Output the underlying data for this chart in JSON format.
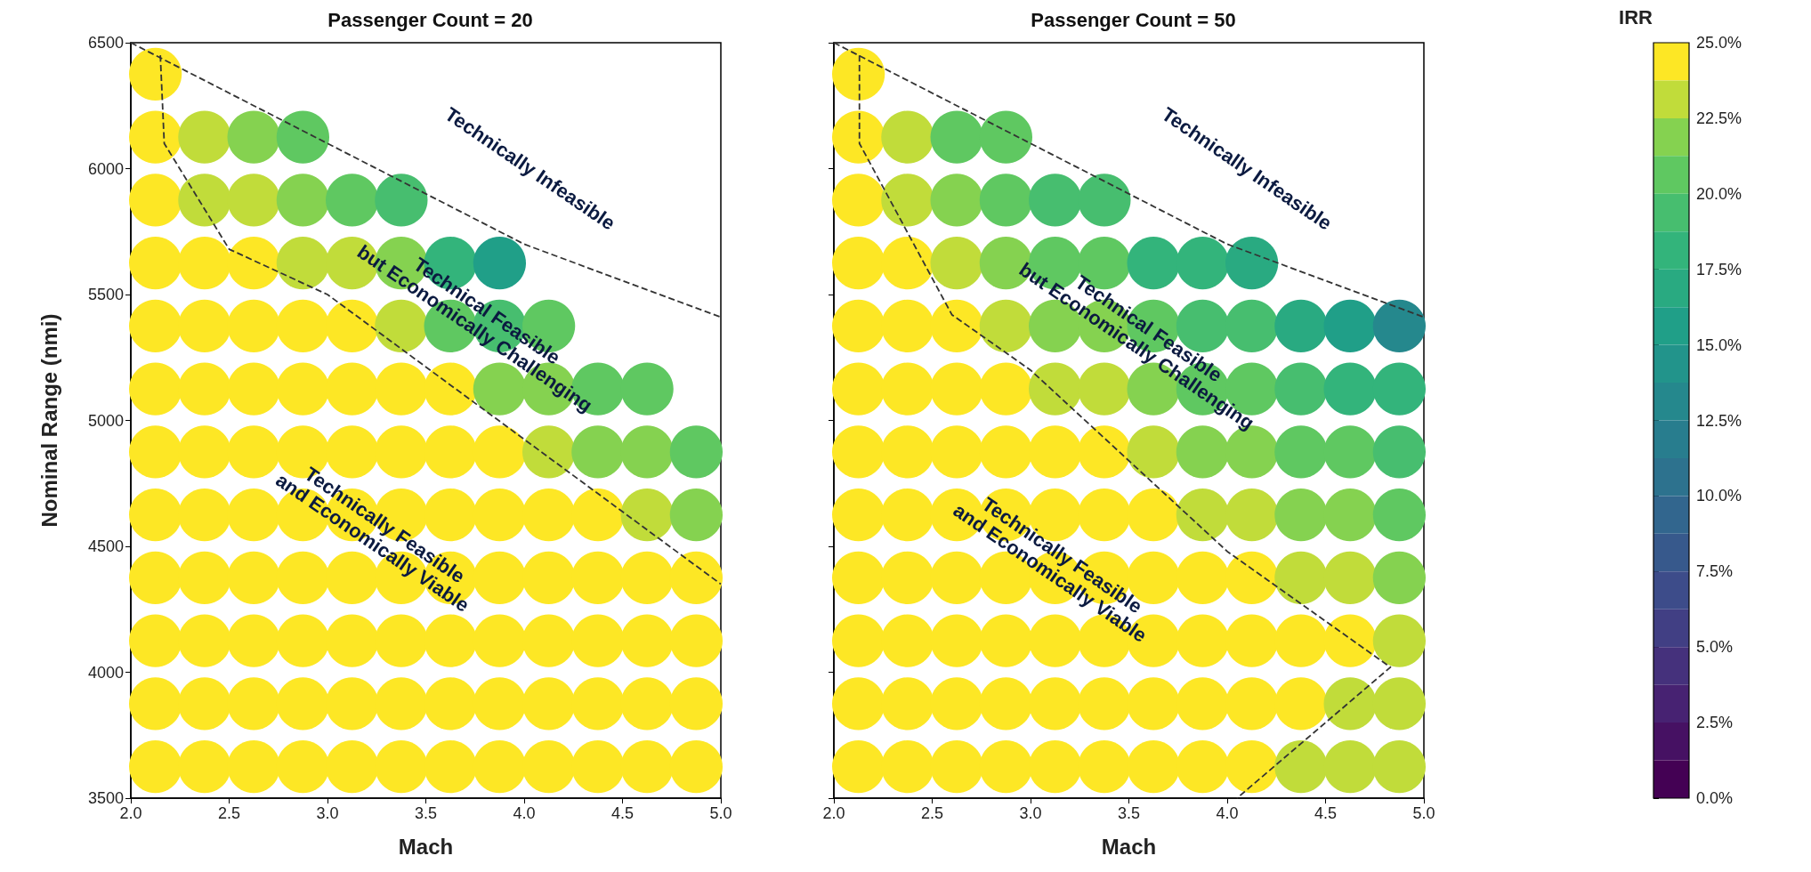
{
  "chart_data": [
    {
      "type": "scatter",
      "title": "Passenger Count = 20",
      "xlabel": "Mach",
      "ylabel": "Nominal Range (nmi)",
      "xlim": [
        2.0,
        5.0
      ],
      "xticks": [
        {
          "value": 2,
          "label": "2.0"
        },
        {
          "value": 2.5,
          "label": "2.5"
        },
        {
          "value": 3,
          "label": "3.0"
        },
        {
          "value": 3.5,
          "label": "3.5"
        },
        {
          "value": 4,
          "label": "4.0"
        },
        {
          "value": 4.5,
          "label": "4.5"
        },
        {
          "value": 5,
          "label": "5.0"
        }
      ],
      "ylim": [
        3500,
        6500
      ],
      "yticks": [
        3500,
        4000,
        4500,
        5000,
        5500,
        6000,
        6500
      ],
      "series": [
        {
          "type": "scatter",
          "marker": "circle",
          "x": [
            2.125,
            2.125,
            2.375,
            2.625,
            2.875,
            2.125,
            2.375,
            2.625,
            2.875,
            3.125,
            3.375,
            2.125,
            2.375,
            2.625,
            2.875,
            3.125,
            3.375,
            3.625,
            3.875,
            2.125,
            2.375,
            2.625,
            2.875,
            3.125,
            3.375,
            3.625,
            3.875,
            4.125,
            2.125,
            2.375,
            2.625,
            2.875,
            3.125,
            3.375,
            3.625,
            3.875,
            4.125,
            4.375,
            4.625,
            2.125,
            2.375,
            2.625,
            2.875,
            3.125,
            3.375,
            3.625,
            3.875,
            4.125,
            4.375,
            4.625,
            4.875,
            2.125,
            2.375,
            2.625,
            2.875,
            3.125,
            3.375,
            3.625,
            3.875,
            4.125,
            4.375,
            4.625,
            4.875,
            2.125,
            2.375,
            2.625,
            2.875,
            3.125,
            3.375,
            3.625,
            3.875,
            4.125,
            4.375,
            4.625,
            4.875,
            2.125,
            2.375,
            2.625,
            2.875,
            3.125,
            3.375,
            3.625,
            3.875,
            4.125,
            4.375,
            4.625,
            4.875,
            2.125,
            2.375,
            2.625,
            2.875,
            3.125,
            3.375,
            3.625,
            3.875,
            4.125,
            4.375,
            4.625,
            4.875,
            2.125,
            2.375,
            2.625,
            2.875,
            3.125,
            3.375,
            3.625,
            3.875,
            4.125,
            4.375,
            4.625,
            4.875
          ],
          "values": [
            6375,
            6125,
            6125,
            6125,
            6125,
            5875,
            5875,
            5875,
            5875,
            5875,
            5875,
            5625,
            5625,
            5625,
            5625,
            5625,
            5625,
            5625,
            5625,
            5375,
            5375,
            5375,
            5375,
            5375,
            5375,
            5375,
            5375,
            5375,
            5125,
            5125,
            5125,
            5125,
            5125,
            5125,
            5125,
            5125,
            5125,
            5125,
            5125,
            4875,
            4875,
            4875,
            4875,
            4875,
            4875,
            4875,
            4875,
            4875,
            4875,
            4875,
            4875,
            4625,
            4625,
            4625,
            4625,
            4625,
            4625,
            4625,
            4625,
            4625,
            4625,
            4625,
            4625,
            4375,
            4375,
            4375,
            4375,
            4375,
            4375,
            4375,
            4375,
            4375,
            4375,
            4375,
            4375,
            4125,
            4125,
            4125,
            4125,
            4125,
            4125,
            4125,
            4125,
            4125,
            4125,
            4125,
            4125,
            3875,
            3875,
            3875,
            3875,
            3875,
            3875,
            3875,
            3875,
            3875,
            3875,
            3875,
            3875,
            3625,
            3625,
            3625,
            3625,
            3625,
            3625,
            3625,
            3625,
            3625,
            3625,
            3625,
            3625
          ],
          "colors": [
            "#fde725",
            "#fde725",
            "#c1dc3a",
            "#85d250",
            "#5fc861",
            "#fde725",
            "#c1dc3a",
            "#c1dc3a",
            "#85d250",
            "#5fc861",
            "#47be6f",
            "#fde725",
            "#fde725",
            "#fde725",
            "#c1dc3a",
            "#c1dc3a",
            "#85d250",
            "#33b47b",
            "#209f88",
            "#fde725",
            "#fde725",
            "#fde725",
            "#fde725",
            "#fde725",
            "#c1dc3a",
            "#5fc861",
            "#47be6f",
            "#5fc861",
            "#fde725",
            "#fde725",
            "#fde725",
            "#fde725",
            "#fde725",
            "#fde725",
            "#fde725",
            "#85d250",
            "#85d250",
            "#5fc861",
            "#5fc861",
            "#fde725",
            "#fde725",
            "#fde725",
            "#fde725",
            "#fde725",
            "#fde725",
            "#fde725",
            "#fde725",
            "#c1dc3a",
            "#85d250",
            "#85d250",
            "#5fc861",
            "#fde725",
            "#fde725",
            "#fde725",
            "#fde725",
            "#fde725",
            "#fde725",
            "#fde725",
            "#fde725",
            "#fde725",
            "#fde725",
            "#c1dc3a",
            "#85d250",
            "#fde725",
            "#fde725",
            "#fde725",
            "#fde725",
            "#fde725",
            "#fde725",
            "#fde725",
            "#fde725",
            "#fde725",
            "#fde725",
            "#fde725",
            "#fde725",
            "#fde725",
            "#fde725",
            "#fde725",
            "#fde725",
            "#fde725",
            "#fde725",
            "#fde725",
            "#fde725",
            "#fde725",
            "#fde725",
            "#fde725",
            "#fde725",
            "#fde725",
            "#fde725",
            "#fde725",
            "#fde725",
            "#fde725",
            "#fde725",
            "#fde725",
            "#fde725",
            "#fde725",
            "#fde725",
            "#fde725",
            "#fde725",
            "#fde725",
            "#fde725",
            "#fde725",
            "#fde725",
            "#fde725",
            "#fde725",
            "#fde725",
            "#fde725",
            "#fde725",
            "#fde725",
            "#fde725",
            "#fde725"
          ]
        },
        {
          "type": "line",
          "x": [
            2.0,
            4.0,
            5.0
          ],
          "values": [
            6500,
            5700,
            5410
          ],
          "color": "#333333",
          "line_style": "dashed"
        },
        {
          "type": "line",
          "x": [
            2.15,
            2.17,
            2.5,
            3.0,
            5.0
          ],
          "values": [
            6450,
            6100,
            5680,
            5500,
            4350
          ],
          "color": "#333333",
          "line_style": "dashed"
        }
      ],
      "annotations": [
        "Technically Infeasible",
        "Technical Feasible\nbut Economically Challenging",
        "Technically Feasible\nand Economically Viable"
      ]
    },
    {
      "type": "scatter",
      "title": "Passenger Count = 50",
      "xlabel": "Mach",
      "clabel": "IRR",
      "tick_labels": "x",
      "clim": [
        0,
        25
      ],
      "cticks": [
        {
          "value": 0,
          "label": "0.0%"
        },
        {
          "value": 2.5,
          "label": "2.5%"
        },
        {
          "value": 5,
          "label": "5.0%"
        },
        {
          "value": 7.5,
          "label": "7.5%"
        },
        {
          "value": 10,
          "label": "10.0%"
        },
        {
          "value": 12.5,
          "label": "12.5%"
        },
        {
          "value": 15,
          "label": "15.0%"
        },
        {
          "value": 17.5,
          "label": "17.5%"
        },
        {
          "value": 20,
          "label": "20.0%"
        },
        {
          "value": 22.5,
          "label": "22.5%"
        },
        {
          "value": 25,
          "label": "25.0%"
        }
      ],
      "xlim": [
        2.0,
        5.0
      ],
      "xticks": [
        {
          "value": 2,
          "label": "2.0"
        },
        {
          "value": 2.5,
          "label": "2.5"
        },
        {
          "value": 3,
          "label": "3.0"
        },
        {
          "value": 3.5,
          "label": "3.5"
        },
        {
          "value": 4,
          "label": "4.0"
        },
        {
          "value": 4.5,
          "label": "4.5"
        },
        {
          "value": 5,
          "label": "5.0"
        }
      ],
      "ylim": [
        3500,
        6500
      ],
      "yticks": [
        3500,
        4000,
        4500,
        5000,
        5500,
        6000,
        6500
      ],
      "series": [
        {
          "type": "scatter",
          "marker": "circle",
          "x": [
            2.125,
            2.125,
            2.375,
            2.625,
            2.875,
            2.125,
            2.375,
            2.625,
            2.875,
            3.125,
            3.375,
            2.125,
            2.375,
            2.625,
            2.875,
            3.125,
            3.375,
            3.625,
            3.875,
            4.125,
            2.125,
            2.375,
            2.625,
            2.875,
            3.125,
            3.375,
            3.625,
            3.875,
            4.125,
            4.375,
            4.625,
            4.875,
            2.125,
            2.375,
            2.625,
            2.875,
            3.125,
            3.375,
            3.625,
            3.875,
            4.125,
            4.375,
            4.625,
            4.875,
            2.125,
            2.375,
            2.625,
            2.875,
            3.125,
            3.375,
            3.625,
            3.875,
            4.125,
            4.375,
            4.625,
            4.875,
            2.125,
            2.375,
            2.625,
            2.875,
            3.125,
            3.375,
            3.625,
            3.875,
            4.125,
            4.375,
            4.625,
            4.875,
            2.125,
            2.375,
            2.625,
            2.875,
            3.125,
            3.375,
            3.625,
            3.875,
            4.125,
            4.375,
            4.625,
            4.875,
            2.125,
            2.375,
            2.625,
            2.875,
            3.125,
            3.375,
            3.625,
            3.875,
            4.125,
            4.375,
            4.625,
            4.875,
            2.125,
            2.375,
            2.625,
            2.875,
            3.125,
            3.375,
            3.625,
            3.875,
            4.125,
            4.375,
            4.625,
            4.875,
            2.125,
            2.375,
            2.625,
            2.875,
            3.125,
            3.375,
            3.625,
            3.875,
            4.125,
            4.375,
            4.625,
            4.875
          ],
          "values": [
            6375,
            6125,
            6125,
            6125,
            6125,
            5875,
            5875,
            5875,
            5875,
            5875,
            5875,
            5625,
            5625,
            5625,
            5625,
            5625,
            5625,
            5625,
            5625,
            5625,
            5375,
            5375,
            5375,
            5375,
            5375,
            5375,
            5375,
            5375,
            5375,
            5375,
            5375,
            5375,
            5125,
            5125,
            5125,
            5125,
            5125,
            5125,
            5125,
            5125,
            5125,
            5125,
            5125,
            5125,
            4875,
            4875,
            4875,
            4875,
            4875,
            4875,
            4875,
            4875,
            4875,
            4875,
            4875,
            4875,
            4625,
            4625,
            4625,
            4625,
            4625,
            4625,
            4625,
            4625,
            4625,
            4625,
            4625,
            4625,
            4375,
            4375,
            4375,
            4375,
            4375,
            4375,
            4375,
            4375,
            4375,
            4375,
            4375,
            4375,
            4125,
            4125,
            4125,
            4125,
            4125,
            4125,
            4125,
            4125,
            4125,
            4125,
            4125,
            4125,
            3875,
            3875,
            3875,
            3875,
            3875,
            3875,
            3875,
            3875,
            3875,
            3875,
            3875,
            3875,
            3625,
            3625,
            3625,
            3625,
            3625,
            3625,
            3625,
            3625,
            3625,
            3625,
            3625,
            3625
          ],
          "colors": [
            "#fde725",
            "#fde725",
            "#c1dc3a",
            "#5fc861",
            "#5fc861",
            "#fde725",
            "#c1dc3a",
            "#85d250",
            "#5fc861",
            "#47be6f",
            "#47be6f",
            "#fde725",
            "#fde725",
            "#c1dc3a",
            "#85d250",
            "#5fc861",
            "#5fc861",
            "#33b47b",
            "#33b47b",
            "#29aa81",
            "#fde725",
            "#fde725",
            "#fde725",
            "#c1dc3a",
            "#85d250",
            "#85d250",
            "#5fc861",
            "#47be6f",
            "#47be6f",
            "#29aa81",
            "#209f88",
            "#25888d",
            "#fde725",
            "#fde725",
            "#fde725",
            "#fde725",
            "#c1dc3a",
            "#c1dc3a",
            "#85d250",
            "#5fc861",
            "#5fc861",
            "#47be6f",
            "#33b47b",
            "#33b47b",
            "#fde725",
            "#fde725",
            "#fde725",
            "#fde725",
            "#fde725",
            "#fde725",
            "#c1dc3a",
            "#85d250",
            "#85d250",
            "#5fc861",
            "#5fc861",
            "#47be6f",
            "#fde725",
            "#fde725",
            "#fde725",
            "#fde725",
            "#fde725",
            "#fde725",
            "#fde725",
            "#c1dc3a",
            "#c1dc3a",
            "#85d250",
            "#85d250",
            "#5fc861",
            "#fde725",
            "#fde725",
            "#fde725",
            "#fde725",
            "#fde725",
            "#fde725",
            "#fde725",
            "#fde725",
            "#fde725",
            "#c1dc3a",
            "#c1dc3a",
            "#85d250",
            "#fde725",
            "#fde725",
            "#fde725",
            "#fde725",
            "#fde725",
            "#fde725",
            "#fde725",
            "#fde725",
            "#fde725",
            "#fde725",
            "#fde725",
            "#c1dc3a",
            "#fde725",
            "#fde725",
            "#fde725",
            "#fde725",
            "#fde725",
            "#fde725",
            "#fde725",
            "#fde725",
            "#fde725",
            "#fde725",
            "#c1dc3a",
            "#c1dc3a",
            "#fde725",
            "#fde725",
            "#fde725",
            "#fde725",
            "#fde725",
            "#fde725",
            "#fde725",
            "#fde725",
            "#fde725",
            "#c1dc3a",
            "#c1dc3a",
            "#c1dc3a"
          ]
        },
        {
          "type": "line",
          "x": [
            2.0,
            4.0,
            5.0
          ],
          "values": [
            6500,
            5700,
            5410
          ],
          "color": "#333333",
          "line_style": "dashed"
        },
        {
          "type": "line",
          "x": [
            2.13,
            2.13,
            2.6,
            3.0,
            4.0,
            4.83,
            4.05
          ],
          "values": [
            6450,
            6100,
            5420,
            5200,
            4480,
            4020,
            3500
          ],
          "color": "#333333",
          "line_style": "dashed"
        }
      ],
      "annotations": [
        "Technically Infeasible",
        "Technical Feasible\nbut Economically Challenging",
        "Technically Feasible\nand Economically Viable"
      ]
    }
  ]
}
